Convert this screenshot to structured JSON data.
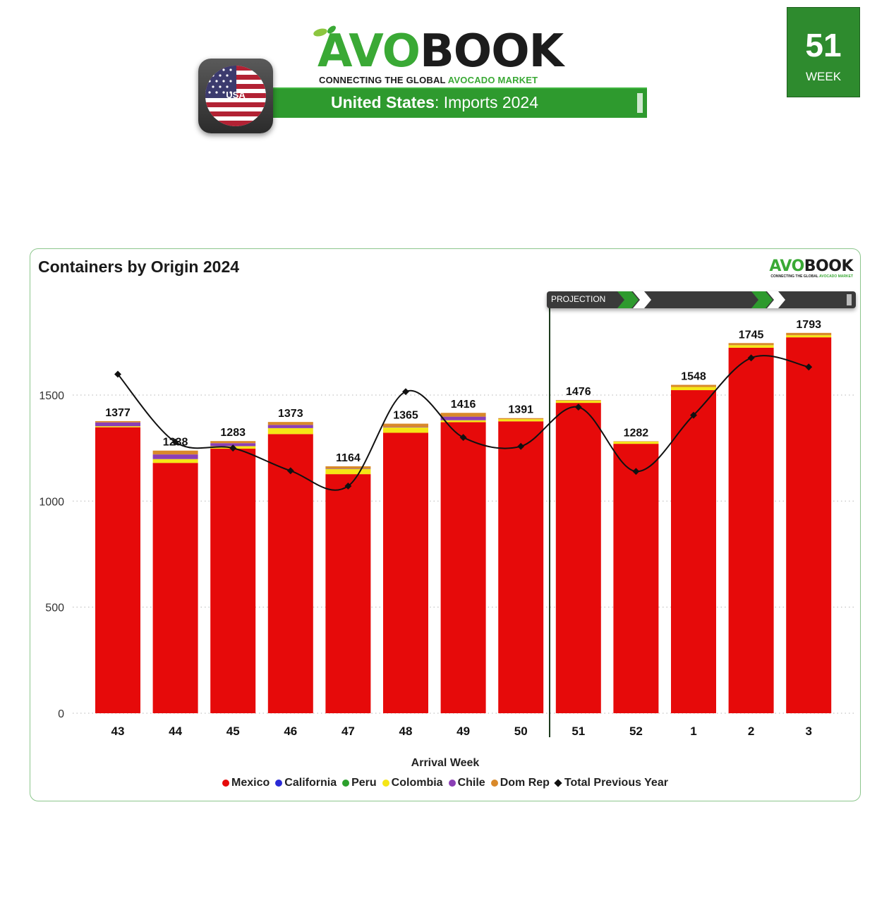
{
  "header": {
    "logo_avo": "AVO",
    "logo_book": "BOOK",
    "tagline_prefix": "CONNECTING THE GLOBAL ",
    "tagline_highlight": "AVOCADO MARKET",
    "country_label": "USA",
    "title_country": "United States",
    "title_rest": ": Imports 2024",
    "week_number": "51",
    "week_label": "WEEK"
  },
  "colors": {
    "brand_green": "#3aa935",
    "title_bar_green": "#2e9a2e",
    "week_box_green": "#2e8b2e"
  },
  "chart_data": {
    "type": "bar",
    "stacked": true,
    "title": "Containers by Origin 2024",
    "xlabel": "Arrival Week",
    "ylabel": "",
    "ylim": [
      0,
      1900
    ],
    "yticks": [
      0,
      500,
      1000,
      1500
    ],
    "grid": "horizontal dotted",
    "legend_position": "bottom",
    "projection_label": "PROJECTION",
    "projection_start_category": "51",
    "categories": [
      "43",
      "44",
      "45",
      "46",
      "47",
      "48",
      "49",
      "50",
      "51",
      "52",
      "1",
      "2",
      "3"
    ],
    "series": [
      {
        "name": "Mexico",
        "color": "#e60a0a",
        "values": [
          1348,
          1180,
          1247,
          1316,
          1127,
          1322,
          1372,
          1376,
          1463,
          1270,
          1523,
          1723,
          1772
        ]
      },
      {
        "name": "California",
        "color": "#2a2ad6",
        "values": [
          0,
          0,
          0,
          0,
          0,
          0,
          0,
          0,
          0,
          0,
          0,
          0,
          0
        ]
      },
      {
        "name": "Peru",
        "color": "#2ca02c",
        "values": [
          0,
          0,
          0,
          0,
          0,
          0,
          0,
          0,
          0,
          0,
          0,
          0,
          0
        ]
      },
      {
        "name": "Colombia",
        "color": "#f5e616",
        "values": [
          5,
          18,
          12,
          28,
          25,
          25,
          9,
          10,
          10,
          10,
          15,
          12,
          10
        ]
      },
      {
        "name": "Chile",
        "color": "#8b3fb5",
        "values": [
          18,
          22,
          14,
          15,
          2,
          2,
          17,
          0,
          0,
          0,
          0,
          0,
          0
        ]
      },
      {
        "name": "Dom Rep",
        "color": "#d9892a",
        "values": [
          6,
          18,
          10,
          14,
          10,
          16,
          18,
          5,
          3,
          2,
          10,
          10,
          11
        ]
      }
    ],
    "totals": [
      1377,
      1238,
      1283,
      1373,
      1164,
      1365,
      1416,
      1391,
      1476,
      1282,
      1548,
      1745,
      1793
    ],
    "line_series": {
      "name": "Total Previous Year",
      "color": "#111111",
      "values": [
        1598,
        1278,
        1250,
        1143,
        1071,
        1516,
        1300,
        1258,
        1443,
        1140,
        1405,
        1675,
        1632
      ]
    }
  }
}
